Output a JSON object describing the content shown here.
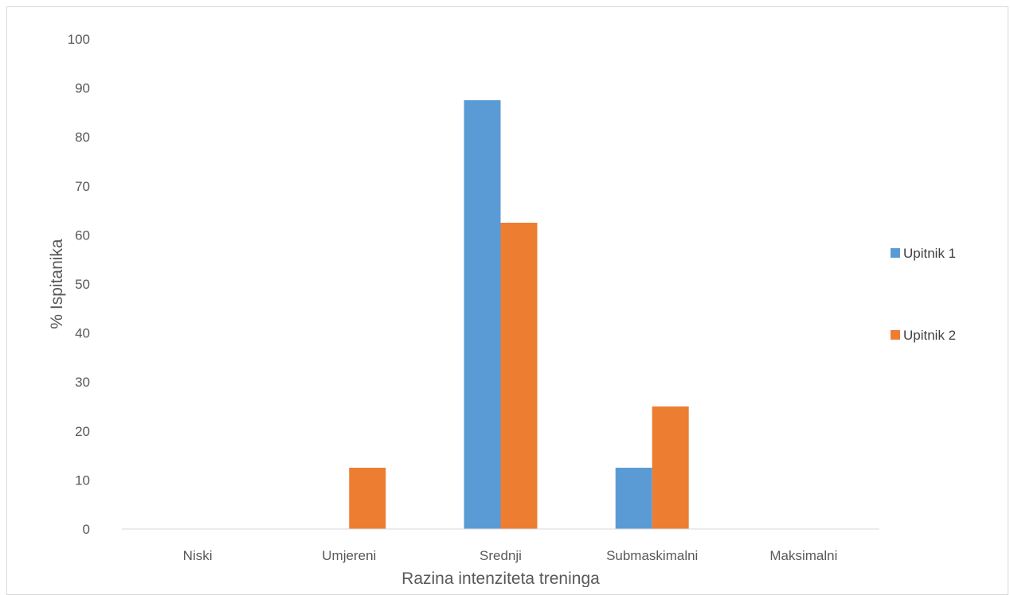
{
  "chart_data": {
    "type": "bar",
    "categories": [
      "Niski",
      "Umjereni",
      "Srednji",
      "Submaskimalni",
      "Maksimalni"
    ],
    "series": [
      {
        "name": "Upitnik 1",
        "values": [
          0,
          0,
          87.5,
          12.5,
          0
        ],
        "color": "#5b9bd5"
      },
      {
        "name": "Upitnik 2",
        "values": [
          0,
          12.5,
          62.5,
          25,
          0
        ],
        "color": "#ed7d31"
      }
    ],
    "xlabel": "Razina intenziteta treninga",
    "ylabel": "% Ispitanika",
    "ylim": [
      0,
      100
    ],
    "yticks": [
      0,
      10,
      20,
      30,
      40,
      50,
      60,
      70,
      80,
      90,
      100
    ],
    "grid": false,
    "legend": "right"
  }
}
